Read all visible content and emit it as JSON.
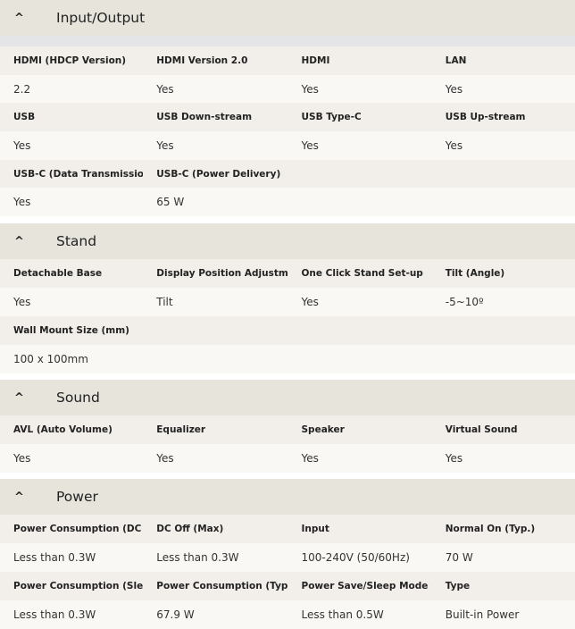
{
  "sections": [
    {
      "title": "Input/Output",
      "icon": "chevron-up-icon",
      "rows": [
        {
          "type": "label",
          "cells": [
            "HDMI (HDCP Version)",
            "HDMI Version 2.0",
            "HDMI",
            "LAN"
          ]
        },
        {
          "type": "value",
          "cells": [
            "2.2",
            "Yes",
            "Yes",
            "Yes"
          ]
        },
        {
          "type": "label",
          "cells": [
            "USB",
            "USB Down-stream",
            "USB Type-C",
            "USB Up-stream"
          ]
        },
        {
          "type": "value",
          "cells": [
            "Yes",
            "Yes",
            "Yes",
            "Yes"
          ]
        },
        {
          "type": "label",
          "cells": [
            "USB-C (Data Transmission)",
            "USB-C (Power Delivery)",
            "",
            ""
          ]
        },
        {
          "type": "value",
          "cells": [
            "Yes",
            "65 W",
            "",
            ""
          ]
        }
      ]
    },
    {
      "title": "Stand",
      "icon": "chevron-up-icon",
      "rows": [
        {
          "type": "label",
          "cells": [
            "Detachable Base",
            "Display Position Adjustment:",
            "One Click Stand Set-up",
            "Tilt (Angle)"
          ]
        },
        {
          "type": "value",
          "cells": [
            "Yes",
            "Tilt",
            "Yes",
            "-5~10º"
          ]
        },
        {
          "type": "label",
          "cells": [
            "Wall Mount Size (mm)",
            "",
            "",
            ""
          ]
        },
        {
          "type": "value",
          "cells": [
            "100 x 100mm",
            "",
            "",
            ""
          ]
        }
      ]
    },
    {
      "title": "Sound",
      "icon": "chevron-up-icon",
      "rows": [
        {
          "type": "label",
          "cells": [
            "AVL (Auto Volume)",
            "Equalizer",
            "Speaker",
            "Virtual Sound"
          ]
        },
        {
          "type": "value",
          "cells": [
            "Yes",
            "Yes",
            "Yes",
            "Yes"
          ]
        }
      ]
    },
    {
      "title": "Power",
      "icon": "chevron-up-icon",
      "rows": [
        {
          "type": "label",
          "cells": [
            "Power Consumption (DC Off)",
            "DC Off (Max)",
            "Input",
            "Normal On (Typ.)"
          ]
        },
        {
          "type": "value",
          "cells": [
            "Less than 0.3W",
            "Less than 0.3W",
            "100-240V (50/60Hz)",
            "70 W"
          ]
        },
        {
          "type": "label",
          "cells": [
            "Power Consumption (Sleep Mode)",
            "Power Consumption (Typ.)",
            "Power Save/Sleep Mode (Max)",
            "Type"
          ]
        },
        {
          "type": "value",
          "cells": [
            "Less than 0.3W",
            "67.9 W",
            "Less than 0.5W",
            "Built-in Power"
          ]
        }
      ]
    }
  ]
}
